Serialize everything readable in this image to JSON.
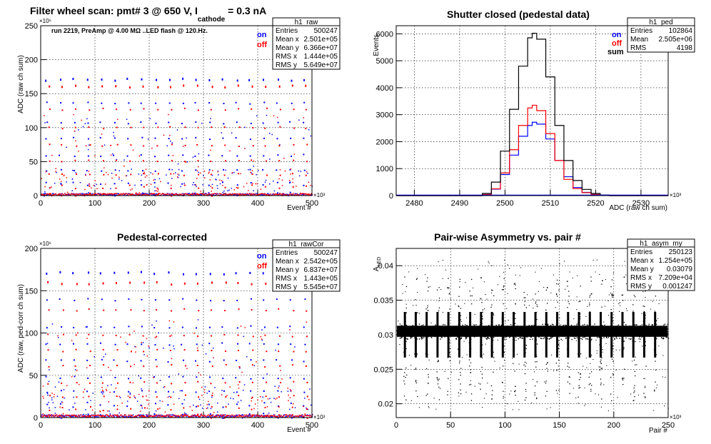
{
  "colors": {
    "on": "#0000ff",
    "off": "#ff0000",
    "sum": "#000000"
  },
  "panels": {
    "raw": {
      "title_parts": {
        "main": "Filter wheel scan: pmt#   3 @   650 V, I",
        "sub": "cathode",
        "tail": " = 0.3 nA"
      },
      "note": "run 2219, PreAmp @ 4.00 MΩ ..LED flash @  120.Hz.",
      "stats": {
        "name": "h1_raw",
        "rows": [
          [
            "Entries",
            "500247"
          ],
          [
            "Mean x",
            "2.501e+05"
          ],
          [
            "Mean y",
            "6.366e+07"
          ],
          [
            "RMS x",
            "1.444e+05"
          ],
          [
            "RMS y",
            "5.649e+07"
          ]
        ]
      },
      "legend": [
        "on",
        "off"
      ]
    },
    "ped": {
      "stats": {
        "name": "h1_ped",
        "rows": [
          [
            "Entries",
            "102864"
          ],
          [
            "Mean",
            "2.505e+06"
          ],
          [
            "RMS",
            "4198"
          ]
        ]
      },
      "legend": [
        "on",
        "off",
        "sum"
      ]
    },
    "rawcor": {
      "stats": {
        "name": "h1_rawCor",
        "rows": [
          [
            "Entries",
            "500247"
          ],
          [
            "Mean x",
            "2.542e+05"
          ],
          [
            "Mean y",
            "6.837e+07"
          ],
          [
            "RMS x",
            "1.443e+05"
          ],
          [
            "RMS y",
            "5.545e+07"
          ]
        ]
      },
      "legend": [
        "on",
        "off"
      ]
    },
    "asym": {
      "stats": {
        "name": "h1_asym_my",
        "rows": [
          [
            "Entries",
            "250123"
          ],
          [
            "Mean x",
            "1.254e+05"
          ],
          [
            "Mean y",
            "0.03079"
          ],
          [
            "RMS x",
            "7.209e+04"
          ],
          [
            "RMS y",
            "0.001247"
          ]
        ]
      }
    }
  },
  "chart_data": [
    {
      "type": "scatter",
      "title": "Filter wheel scan: pmt#   3 @   650 V, I cathode = 0.3 nA",
      "xlabel": "Event #",
      "ylabel": "ADC (raw ch sum)",
      "x_multiplier": "×10³",
      "y_multiplier": "×10⁶",
      "xlim": [
        0,
        500
      ],
      "ylim": [
        0,
        250
      ],
      "xticks": [
        "0",
        "100",
        "200",
        "300",
        "400",
        "500"
      ],
      "yticks": [
        "0",
        "50",
        "100",
        "150",
        "200",
        "250"
      ],
      "grid": true,
      "series": [
        {
          "name": "on",
          "level_bands": [
            172,
            137,
            108,
            85,
            60,
            38,
            18,
            3
          ]
        },
        {
          "name": "off",
          "level_bands": [
            162,
            128,
            101,
            75,
            52,
            32,
            14,
            2
          ]
        }
      ]
    },
    {
      "type": "line",
      "title": "Shutter closed (pedestal data)",
      "xlabel": "ADC (raw ch sum)",
      "ylabel": "Events",
      "x_multiplier": "×10³",
      "xlim": [
        2476,
        2536
      ],
      "ylim": [
        0,
        6300
      ],
      "xticks": [
        "2480",
        "2490",
        "2500",
        "2510",
        "2520",
        "2530"
      ],
      "yticks": [
        "0",
        "1000",
        "2000",
        "3000",
        "4000",
        "5000",
        "6000"
      ],
      "grid": true,
      "series": [
        {
          "name": "on",
          "x": [
            2493,
            2495,
            2497,
            2499,
            2501,
            2503,
            2505,
            2506,
            2507,
            2509,
            2511,
            2513,
            2515,
            2517,
            2519,
            2521,
            2523
          ],
          "y": [
            0,
            40,
            240,
            780,
            1500,
            2200,
            2600,
            2720,
            2650,
            2100,
            1300,
            700,
            300,
            120,
            40,
            10,
            0
          ]
        },
        {
          "name": "off",
          "x": [
            2493,
            2495,
            2497,
            2499,
            2501,
            2503,
            2505,
            2506,
            2507,
            2509,
            2511,
            2513,
            2515,
            2517,
            2519,
            2521,
            2523
          ],
          "y": [
            0,
            40,
            250,
            840,
            1700,
            2600,
            3250,
            3350,
            3150,
            2300,
            1300,
            600,
            260,
            110,
            40,
            10,
            0
          ]
        },
        {
          "name": "sum",
          "x": [
            2493,
            2495,
            2497,
            2499,
            2501,
            2503,
            2505,
            2506,
            2507,
            2509,
            2511,
            2513,
            2515,
            2517,
            2519,
            2521,
            2523
          ],
          "y": [
            0,
            80,
            500,
            1650,
            3200,
            4800,
            5850,
            6020,
            5800,
            4400,
            2600,
            1300,
            560,
            230,
            80,
            20,
            0
          ]
        }
      ]
    },
    {
      "type": "scatter",
      "title": "Pedestal-corrected",
      "xlabel": "Event #",
      "ylabel": "ADC (raw, ped-corr ch sum)",
      "x_multiplier": "×10³",
      "y_multiplier": "×10⁶",
      "xlim": [
        0,
        500
      ],
      "ylim": [
        0,
        200
      ],
      "xticks": [
        "0",
        "100",
        "200",
        "300",
        "400",
        "500"
      ],
      "yticks": [
        "0",
        "50",
        "100",
        "150",
        "200"
      ],
      "grid": true,
      "series": [
        {
          "name": "on",
          "level_bands": [
            172,
            140,
            108,
            88,
            68,
            48,
            32,
            16,
            3
          ]
        },
        {
          "name": "off",
          "level_bands": [
            160,
            128,
            98,
            80,
            62,
            42,
            26,
            12,
            2
          ]
        }
      ]
    },
    {
      "type": "scatter",
      "title": "Pair-wise Asymmetry vs. pair #",
      "xlabel": "Pair #",
      "ylabel": "A_LED",
      "x_multiplier": "×10³",
      "xlim": [
        0,
        250
      ],
      "ylim": [
        0.018,
        0.0425
      ],
      "xticks": [
        "0",
        "50",
        "100",
        "150",
        "200",
        "250"
      ],
      "yticks": [
        "0.02",
        "0.025",
        "0.03",
        "0.035",
        "0.04"
      ],
      "grid": true,
      "series": [
        {
          "name": "h1_asym_my",
          "center": 0.0305,
          "band_halfwidth": 0.0008,
          "spike_x": [
            8,
            18,
            28,
            38,
            48,
            58,
            68,
            78,
            88,
            98,
            108,
            118,
            128,
            138,
            148,
            158,
            168,
            178,
            188,
            198,
            208,
            218,
            228,
            238
          ],
          "spike_range": [
            0.0205,
            0.0385
          ]
        }
      ]
    }
  ]
}
